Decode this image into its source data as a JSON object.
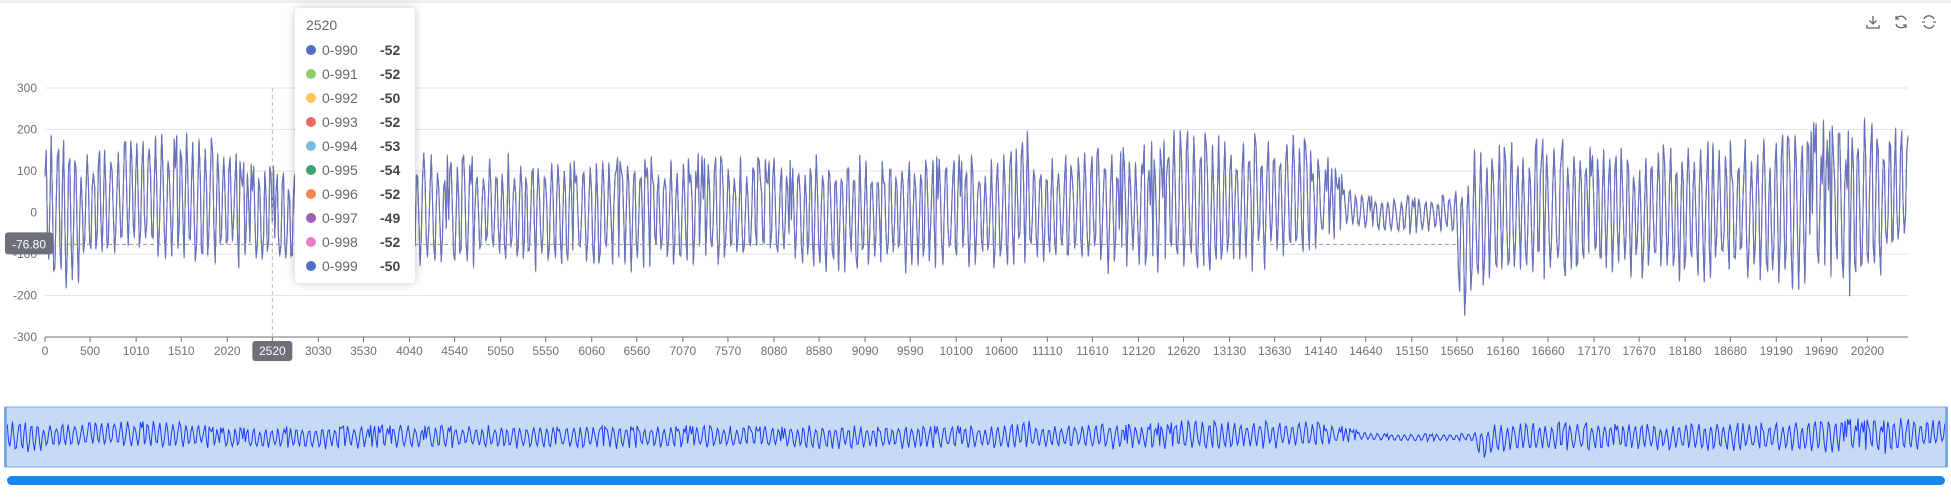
{
  "toolbox": {
    "icons": [
      "download-icon",
      "refresh-icon",
      "restore-icon"
    ]
  },
  "tooltip": {
    "title": "2520",
    "rows": [
      {
        "name": "0-990",
        "value": "-52",
        "color": "#5470c6"
      },
      {
        "name": "0-991",
        "value": "-52",
        "color": "#91cc75"
      },
      {
        "name": "0-992",
        "value": "-50",
        "color": "#fac858"
      },
      {
        "name": "0-993",
        "value": "-52",
        "color": "#ee6666"
      },
      {
        "name": "0-994",
        "value": "-53",
        "color": "#73c0de"
      },
      {
        "name": "0-995",
        "value": "-54",
        "color": "#3ba272"
      },
      {
        "name": "0-996",
        "value": "-52",
        "color": "#fc8452"
      },
      {
        "name": "0-997",
        "value": "-49",
        "color": "#9a60b4"
      },
      {
        "name": "0-998",
        "value": "-52",
        "color": "#ea7ccc"
      },
      {
        "name": "0-999",
        "value": "-50",
        "color": "#5470c6"
      }
    ]
  },
  "chart_data": {
    "type": "line",
    "xlabel": "",
    "ylabel": "",
    "ylim": [
      -300,
      300
    ],
    "xlim": [
      0,
      20650
    ],
    "yticks": [
      "300",
      "200",
      "100",
      "0",
      "-100",
      "-200",
      "-300"
    ],
    "xticks": [
      "0",
      "500",
      "1010",
      "1510",
      "2020",
      "2520",
      "3030",
      "3530",
      "4040",
      "4540",
      "5050",
      "5550",
      "6060",
      "6560",
      "7070",
      "7570",
      "8080",
      "8580",
      "9090",
      "9590",
      "10100",
      "10600",
      "11110",
      "11610",
      "12120",
      "12620",
      "13130",
      "13630",
      "14140",
      "14640",
      "15150",
      "15650",
      "16160",
      "16660",
      "17170",
      "17670",
      "18180",
      "18680",
      "19190",
      "19690",
      "20200"
    ],
    "grid": true,
    "pointer": {
      "x_label": "2520",
      "y_label": "-76.80",
      "x": 2520,
      "y": -76.8,
      "crosshair_end_x": 15650
    },
    "series_names": [
      "0-990",
      "0-991",
      "0-992",
      "0-993",
      "0-994",
      "0-995",
      "0-996",
      "0-997",
      "0-998",
      "0-999"
    ],
    "series_colors": [
      "#5470c6",
      "#91cc75",
      "#fac858",
      "#ee6666",
      "#73c0de",
      "#3ba272",
      "#fc8452",
      "#9a60b4",
      "#ea7ccc",
      "#5470c6"
    ],
    "envelope": {
      "x": [
        0,
        200,
        400,
        600,
        1000,
        1400,
        1700,
        2000,
        2200,
        2520,
        3000,
        3500,
        4000,
        5000,
        6000,
        7000,
        8000,
        9000,
        10000,
        10700,
        10850,
        11000,
        11600,
        12200,
        12600,
        13000,
        13400,
        13900,
        14200,
        14500,
        14700,
        15000,
        15400,
        15600,
        15700,
        15900,
        16200,
        16700,
        17200,
        18000,
        18700,
        19200,
        19600,
        20000,
        20300,
        20650
      ],
      "max": [
        200,
        210,
        150,
        170,
        205,
        200,
        205,
        170,
        130,
        120,
        130,
        125,
        150,
        145,
        140,
        145,
        140,
        145,
        140,
        140,
        235,
        150,
        160,
        170,
        225,
        190,
        200,
        195,
        140,
        55,
        45,
        40,
        42,
        45,
        120,
        165,
        185,
        175,
        180,
        170,
        175,
        200,
        225,
        215,
        245,
        200
      ],
      "min": [
        -200,
        -210,
        -170,
        -140,
        -120,
        -130,
        -135,
        -120,
        -150,
        -155,
        -150,
        -150,
        -145,
        -145,
        -150,
        -145,
        -145,
        -150,
        -145,
        -140,
        -145,
        -150,
        -145,
        -160,
        -160,
        -160,
        -145,
        -130,
        -90,
        -40,
        -50,
        -52,
        -50,
        -50,
        -290,
        -200,
        -180,
        -175,
        -175,
        -175,
        -180,
        -190,
        -200,
        -215,
        -180,
        -90
      ]
    },
    "slider": {
      "start": 0,
      "end": 100
    }
  }
}
